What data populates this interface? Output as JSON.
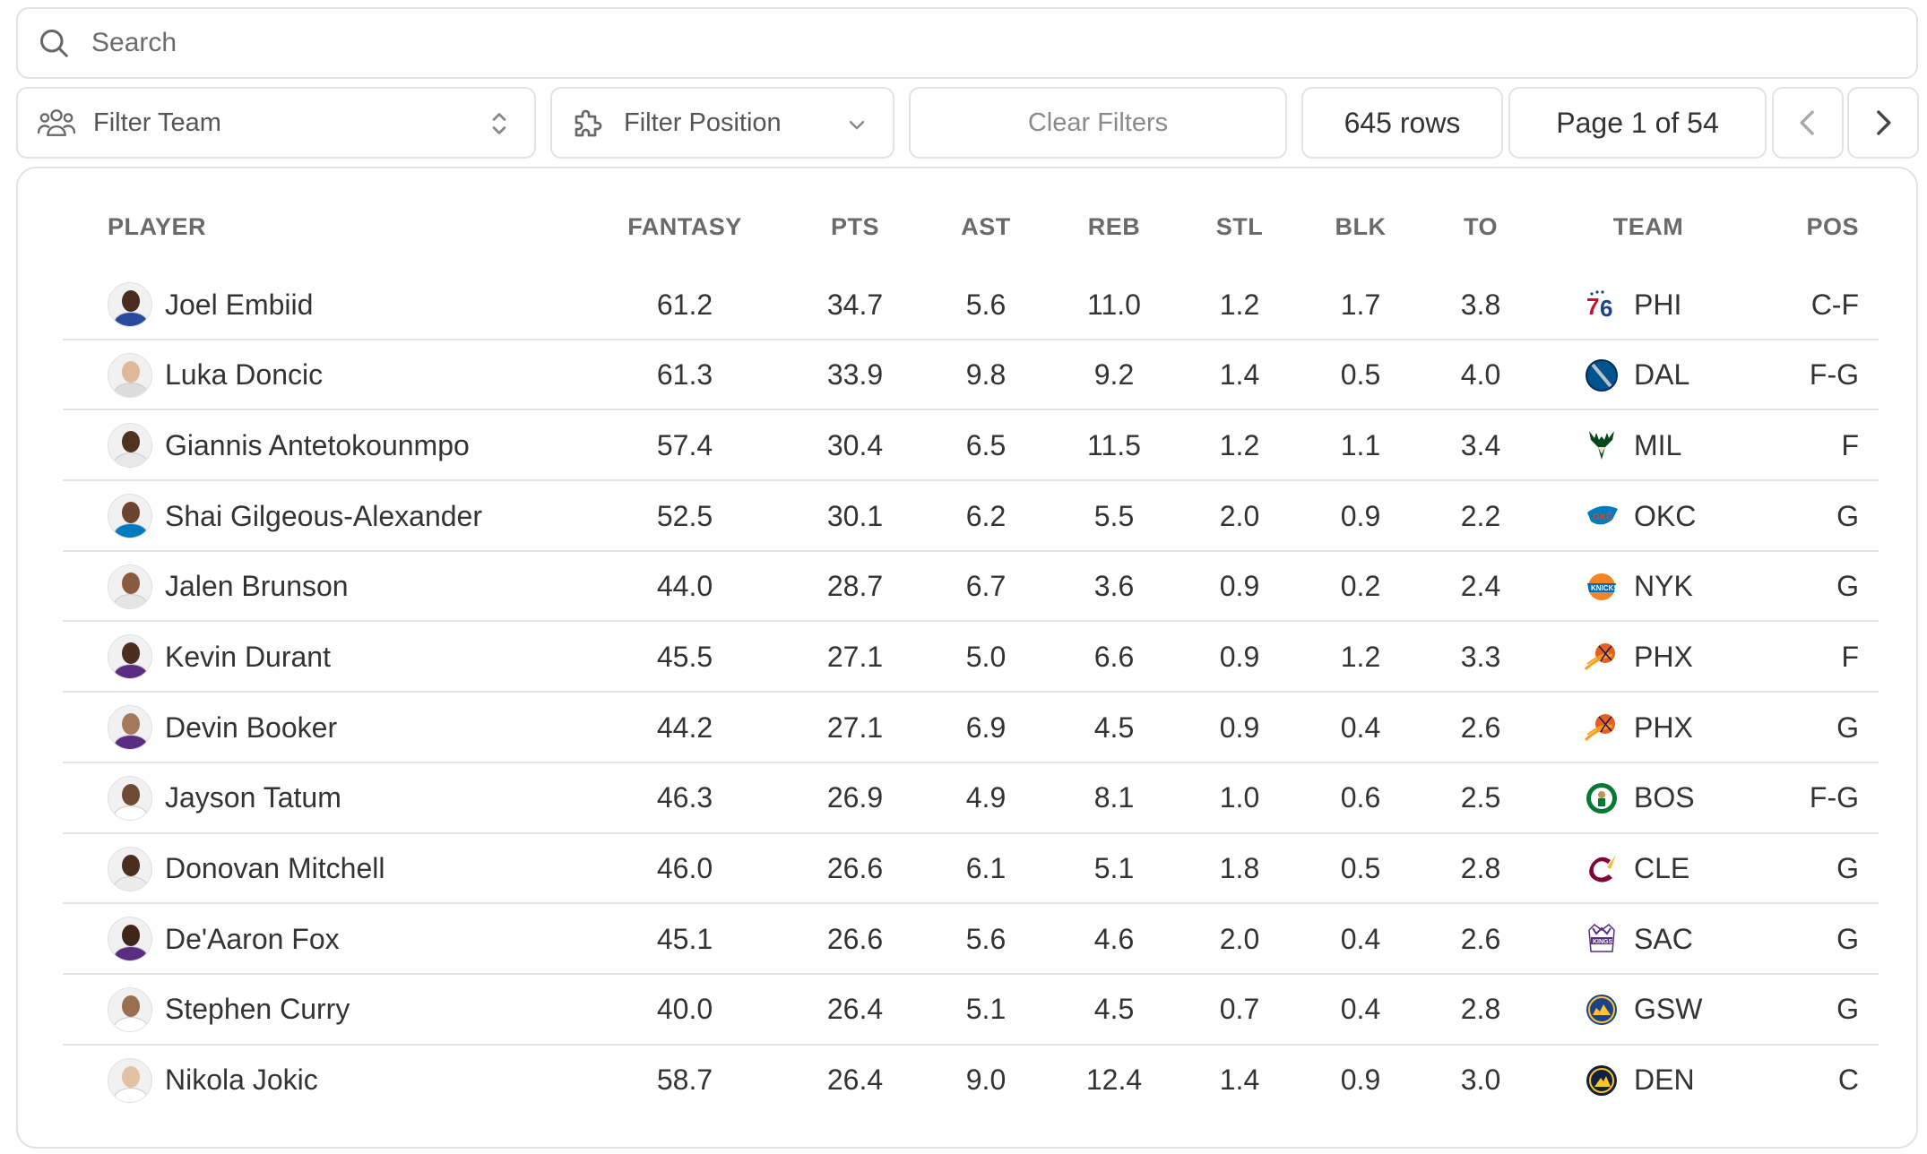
{
  "search": {
    "placeholder": "Search"
  },
  "filters": {
    "team_placeholder": "Filter Team",
    "position_placeholder": "Filter Position",
    "clear_label": "Clear Filters",
    "rows_label": "645 rows",
    "page_label": "Page 1 of 54"
  },
  "table": {
    "columns": [
      "PLAYER",
      "FANTASY",
      "PTS",
      "AST",
      "REB",
      "STL",
      "BLK",
      "TO",
      "TEAM",
      "POS"
    ],
    "rows": [
      {
        "player": "Joel Embiid",
        "fantasy": "61.2",
        "pts": "34.7",
        "ast": "5.6",
        "reb": "11.0",
        "stl": "1.2",
        "blk": "1.7",
        "to": "3.8",
        "team": "PHI",
        "pos": "C-F",
        "skin": "#4a2c1e",
        "jersey": "#2a4aa0",
        "logo_color": "#c8102e"
      },
      {
        "player": "Luka Doncic",
        "fantasy": "61.3",
        "pts": "33.9",
        "ast": "9.8",
        "reb": "9.2",
        "stl": "1.4",
        "blk": "0.5",
        "to": "4.0",
        "team": "DAL",
        "pos": "F-G",
        "skin": "#e0b89a",
        "jersey": "#dcdcdc",
        "logo_color": "#00538c"
      },
      {
        "player": "Giannis Antetokounmpo",
        "fantasy": "57.4",
        "pts": "30.4",
        "ast": "6.5",
        "reb": "11.5",
        "stl": "1.2",
        "blk": "1.1",
        "to": "3.4",
        "team": "MIL",
        "pos": "F",
        "skin": "#4e3222",
        "jersey": "#e8e8e8",
        "logo_color": "#00471b"
      },
      {
        "player": "Shai Gilgeous-Alexander",
        "fantasy": "52.5",
        "pts": "30.1",
        "ast": "6.2",
        "reb": "5.5",
        "stl": "2.0",
        "blk": "0.9",
        "to": "2.2",
        "team": "OKC",
        "pos": "G",
        "skin": "#6a4430",
        "jersey": "#007ac1",
        "logo_color": "#007ac1"
      },
      {
        "player": "Jalen Brunson",
        "fantasy": "44.0",
        "pts": "28.7",
        "ast": "6.7",
        "reb": "3.6",
        "stl": "0.9",
        "blk": "0.2",
        "to": "2.4",
        "team": "NYK",
        "pos": "G",
        "skin": "#8a5a40",
        "jersey": "#e5e5e5",
        "logo_color": "#f58426"
      },
      {
        "player": "Kevin Durant",
        "fantasy": "45.5",
        "pts": "27.1",
        "ast": "5.0",
        "reb": "6.6",
        "stl": "0.9",
        "blk": "1.2",
        "to": "3.3",
        "team": "PHX",
        "pos": "F",
        "skin": "#4a2e20",
        "jersey": "#5a2d82",
        "logo_color": "#e56020"
      },
      {
        "player": "Devin Booker",
        "fantasy": "44.2",
        "pts": "27.1",
        "ast": "6.9",
        "reb": "4.5",
        "stl": "0.9",
        "blk": "0.4",
        "to": "2.6",
        "team": "PHX",
        "pos": "G",
        "skin": "#a57a5a",
        "jersey": "#5a2d82",
        "logo_color": "#e56020"
      },
      {
        "player": "Jayson Tatum",
        "fantasy": "46.3",
        "pts": "26.9",
        "ast": "4.9",
        "reb": "8.1",
        "stl": "1.0",
        "blk": "0.6",
        "to": "2.5",
        "team": "BOS",
        "pos": "F-G",
        "skin": "#6e4a34",
        "jersey": "#ffffff",
        "logo_color": "#007a33"
      },
      {
        "player": "Donovan Mitchell",
        "fantasy": "46.0",
        "pts": "26.6",
        "ast": "6.1",
        "reb": "5.1",
        "stl": "1.8",
        "blk": "0.5",
        "to": "2.8",
        "team": "CLE",
        "pos": "G",
        "skin": "#4a2e20",
        "jersey": "#ececec",
        "logo_color": "#860038"
      },
      {
        "player": "De'Aaron Fox",
        "fantasy": "45.1",
        "pts": "26.6",
        "ast": "5.6",
        "reb": "4.6",
        "stl": "2.0",
        "blk": "0.4",
        "to": "2.6",
        "team": "SAC",
        "pos": "G",
        "skin": "#3e2618",
        "jersey": "#5a2d81",
        "logo_color": "#5a2d81"
      },
      {
        "player": "Stephen Curry",
        "fantasy": "40.0",
        "pts": "26.4",
        "ast": "5.1",
        "reb": "4.5",
        "stl": "0.7",
        "blk": "0.4",
        "to": "2.8",
        "team": "GSW",
        "pos": "G",
        "skin": "#9a6e50",
        "jersey": "#ffffff",
        "logo_color": "#1d428a"
      },
      {
        "player": "Nikola Jokic",
        "fantasy": "58.7",
        "pts": "26.4",
        "ast": "9.0",
        "reb": "12.4",
        "stl": "1.4",
        "blk": "0.9",
        "to": "3.0",
        "team": "DEN",
        "pos": "C",
        "skin": "#e2c0a2",
        "jersey": "#ffffff",
        "logo_color": "#0e2240"
      }
    ]
  },
  "icons": {
    "search": "search-icon",
    "team": "people-icon",
    "position": "puzzle-icon",
    "team_select": "chevron-up-down-icon",
    "position_select": "chevron-down-icon",
    "prev": "chevron-left-icon",
    "next": "chevron-right-icon"
  }
}
